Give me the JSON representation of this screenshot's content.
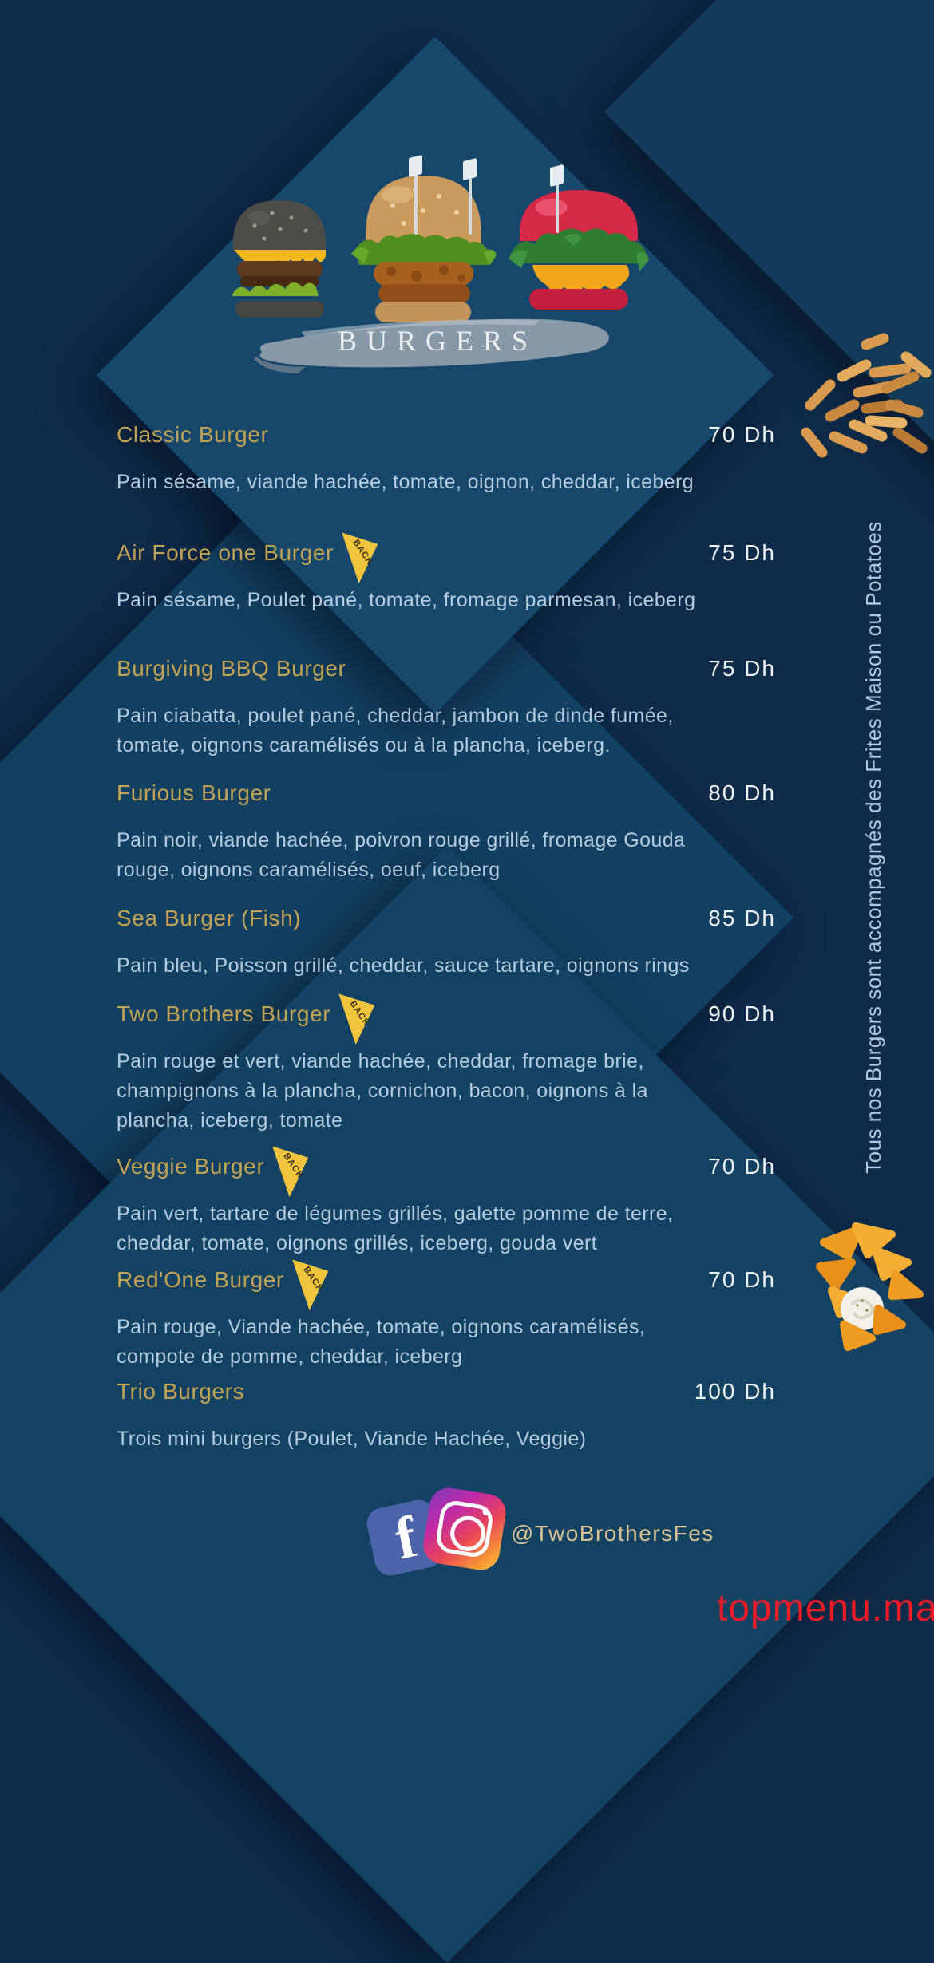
{
  "header": {
    "title": "BURGERS"
  },
  "side_note": "Tous nos Burgers sont accompagnés des Frites Maison ou Potatoes",
  "badge_label": "BACK",
  "menu": {
    "items": [
      {
        "name": "Classic Burger",
        "price": "70 Dh",
        "badge": false,
        "desc": "Pain sésame, viande hachée, tomate, oignon, cheddar, iceberg"
      },
      {
        "name": "Air Force one Burger",
        "price": "75 Dh",
        "badge": true,
        "desc": "Pain sésame, Poulet pané, tomate, fromage parmesan, iceberg"
      },
      {
        "name": "Burgiving BBQ Burger",
        "price": "75 Dh",
        "badge": false,
        "desc": "Pain ciabatta, poulet pané, cheddar, jambon de dinde fumée,\ntomate, oignons caramélisés ou à la plancha, iceberg."
      },
      {
        "name": "Furious Burger",
        "price": "80 Dh",
        "badge": false,
        "desc": "Pain noir, viande hachée, poivron rouge grillé, fromage Gouda\nrouge, oignons caramélisés, oeuf, iceberg"
      },
      {
        "name": "Sea Burger (Fish)",
        "price": "85 Dh",
        "badge": false,
        "desc": "Pain bleu, Poisson grillé, cheddar, sauce tartare, oignons rings"
      },
      {
        "name": "Two Brothers Burger",
        "price": "90 Dh",
        "badge": true,
        "desc": "Pain rouge et vert, viande hachée, cheddar, fromage brie,\nchampignons à la plancha, cornichon, bacon, oignons à la\nplancha, iceberg, tomate"
      },
      {
        "name": "Veggie Burger",
        "price": "70 Dh",
        "badge": true,
        "desc": "Pain vert, tartare de légumes grillés, galette pomme de terre,\ncheddar, tomate, oignons grillés, iceberg, gouda vert"
      },
      {
        "name": "Red'One Burger",
        "price": "70 Dh",
        "badge": true,
        "desc": "Pain rouge, Viande hachée, tomate, oignons caramélisés,\ncompote de pomme, cheddar, iceberg"
      },
      {
        "name": "Trio Burgers",
        "price": "100 Dh",
        "badge": false,
        "desc": "Trois mini burgers (Poulet, Viande Hachée, Veggie)"
      }
    ]
  },
  "footer": {
    "handle": "@TwoBrothersFes",
    "icons": [
      "facebook",
      "instagram"
    ]
  },
  "watermark": "topmenu.ma",
  "colors": {
    "background": "#0f2b4a",
    "panel_blue": "#17486b",
    "item_name_gold": "#c2a254",
    "price_white": "#eef2f2",
    "description_blue": "#b5cbde",
    "badge_yellow": "#f0c43c",
    "handle_gold": "#d7c193",
    "watermark_red": "#ef1b26"
  }
}
